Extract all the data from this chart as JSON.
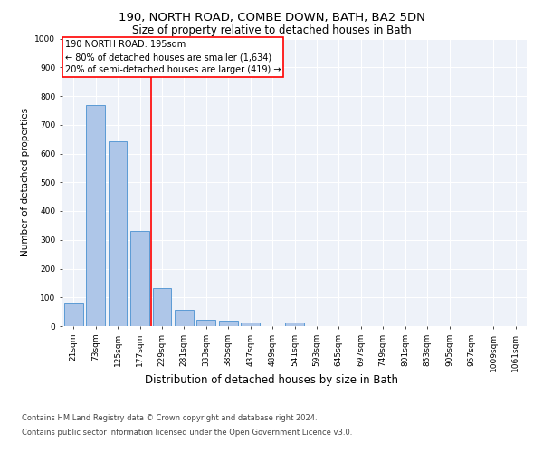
{
  "title_line1": "190, NORTH ROAD, COMBE DOWN, BATH, BA2 5DN",
  "title_line2": "Size of property relative to detached houses in Bath",
  "xlabel": "Distribution of detached houses by size in Bath",
  "ylabel": "Number of detached properties",
  "categories": [
    "21sqm",
    "73sqm",
    "125sqm",
    "177sqm",
    "229sqm",
    "281sqm",
    "333sqm",
    "385sqm",
    "437sqm",
    "489sqm",
    "541sqm",
    "593sqm",
    "645sqm",
    "697sqm",
    "749sqm",
    "801sqm",
    "853sqm",
    "905sqm",
    "957sqm",
    "1009sqm",
    "1061sqm"
  ],
  "bar_values": [
    83,
    770,
    643,
    330,
    133,
    58,
    23,
    20,
    12,
    0,
    12,
    0,
    0,
    0,
    0,
    0,
    0,
    0,
    0,
    0,
    0
  ],
  "bar_color": "#aec6e8",
  "bar_edge_color": "#5b9bd5",
  "ylim": [
    0,
    1000
  ],
  "yticks": [
    0,
    100,
    200,
    300,
    400,
    500,
    600,
    700,
    800,
    900,
    1000
  ],
  "red_line_x": 3.5,
  "annotation_title": "190 NORTH ROAD: 195sqm",
  "annotation_line1": "← 80% of detached houses are smaller (1,634)",
  "annotation_line2": "20% of semi-detached houses are larger (419) →",
  "footer_line1": "Contains HM Land Registry data © Crown copyright and database right 2024.",
  "footer_line2": "Contains public sector information licensed under the Open Government Licence v3.0.",
  "background_color": "#eef2f9",
  "grid_color": "#ffffff",
  "title1_fontsize": 9.5,
  "title2_fontsize": 8.5,
  "ylabel_fontsize": 7.5,
  "xlabel_fontsize": 8.5,
  "tick_fontsize": 6.5,
  "annotation_fontsize": 7.0,
  "footer_fontsize": 6.0
}
